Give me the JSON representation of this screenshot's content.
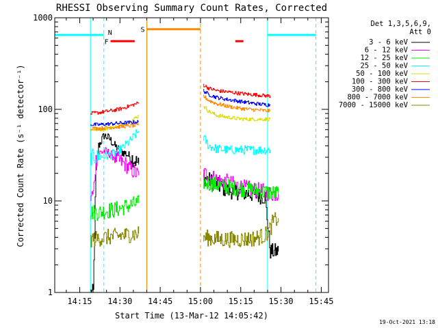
{
  "chart_data": {
    "type": "line",
    "title": "RHESSI Observing Summary Count Rates, Corrected",
    "xlabel": "Start Time (13-Mar-12 14:05:42)",
    "ylabel": "Corrected Count Rate (s⁻¹ detector⁻¹)",
    "yscale": "log",
    "ylim": [
      1,
      1000
    ],
    "xlim_minutes": [
      5.7,
      107.7
    ],
    "x_ticks": [
      {
        "label": "14:15",
        "min": 15
      },
      {
        "label": "14:30",
        "min": 30
      },
      {
        "label": "14:45",
        "min": 45
      },
      {
        "label": "15:00",
        "min": 60
      },
      {
        "label": "15:15",
        "min": 75
      },
      {
        "label": "15:30",
        "min": 90
      },
      {
        "label": "15:45",
        "min": 105
      }
    ],
    "y_ticks": [
      {
        "label": "1",
        "value": 1
      },
      {
        "label": "10",
        "value": 10
      },
      {
        "label": "100",
        "value": 100
      },
      {
        "label": "1000",
        "value": 1000
      }
    ],
    "legend_header": "Det 1,3,5,6,9,",
    "attenuator": "Att 0",
    "series": [
      {
        "name": "3 - 6 keV",
        "color": "#000000",
        "seg1": [
          [
            19,
            1.0
          ],
          [
            20,
            1.0
          ],
          [
            21,
            20
          ],
          [
            22,
            40
          ],
          [
            24,
            52
          ],
          [
            26,
            48
          ],
          [
            28,
            40
          ],
          [
            30,
            35
          ],
          [
            32,
            33
          ],
          [
            34,
            30
          ],
          [
            36,
            27
          ],
          [
            37,
            25
          ]
        ],
        "seg2": [
          [
            61,
            18
          ],
          [
            63,
            17
          ],
          [
            66,
            15
          ],
          [
            70,
            13
          ],
          [
            74,
            12.5
          ],
          [
            78,
            12
          ],
          [
            81,
            11.5
          ],
          [
            84,
            11
          ],
          [
            86,
            2.8
          ],
          [
            89,
            2.8
          ]
        ]
      },
      {
        "name": "6 - 12 keV",
        "color": "#ff00ff",
        "seg1": [
          [
            19,
            11
          ],
          [
            20,
            12
          ],
          [
            21,
            28
          ],
          [
            22,
            33
          ],
          [
            24,
            35
          ],
          [
            26,
            33
          ],
          [
            28,
            30
          ],
          [
            30,
            27
          ],
          [
            32,
            25
          ],
          [
            34,
            22
          ],
          [
            37,
            19
          ]
        ],
        "seg2": [
          [
            61,
            20
          ],
          [
            63,
            19
          ],
          [
            66,
            17
          ],
          [
            70,
            16
          ],
          [
            74,
            14.5
          ],
          [
            78,
            13.5
          ],
          [
            81,
            13
          ],
          [
            84,
            12.5
          ],
          [
            86,
            12
          ],
          [
            89,
            12
          ]
        ]
      },
      {
        "name": "12 - 25 keV",
        "color": "#00ee00",
        "seg1": [
          [
            19,
            7.5
          ],
          [
            22,
            7.5
          ],
          [
            25,
            7.8
          ],
          [
            28,
            8
          ],
          [
            31,
            8.5
          ],
          [
            34,
            9
          ],
          [
            37,
            9.5
          ]
        ],
        "seg2": [
          [
            61,
            16
          ],
          [
            64,
            15.5
          ],
          [
            68,
            14.5
          ],
          [
            72,
            14
          ],
          [
            76,
            13.5
          ],
          [
            80,
            13
          ],
          [
            84,
            12.5
          ],
          [
            89,
            12
          ]
        ]
      },
      {
        "name": "25 - 50 keV",
        "color": "#00ffff",
        "seg1": [
          [
            19,
            30
          ],
          [
            22,
            30
          ],
          [
            25,
            31
          ],
          [
            28,
            33
          ],
          [
            31,
            38
          ],
          [
            34,
            46
          ],
          [
            37,
            58
          ]
        ],
        "seg2": [
          [
            61,
            50
          ],
          [
            63,
            40
          ],
          [
            66,
            37
          ],
          [
            70,
            36
          ],
          [
            74,
            36
          ],
          [
            78,
            36
          ],
          [
            82,
            36
          ],
          [
            85,
            36
          ],
          [
            86,
            36
          ]
        ]
      },
      {
        "name": "50 - 100 keV",
        "color": "#dddd00",
        "seg1": [
          [
            19,
            60
          ],
          [
            22,
            60
          ],
          [
            25,
            62
          ],
          [
            28,
            64
          ],
          [
            31,
            68
          ],
          [
            34,
            75
          ],
          [
            37,
            85
          ]
        ],
        "seg2": [
          [
            61,
            110
          ],
          [
            63,
            95
          ],
          [
            66,
            86
          ],
          [
            70,
            82
          ],
          [
            74,
            79
          ],
          [
            78,
            78
          ],
          [
            82,
            78
          ],
          [
            85,
            78
          ],
          [
            86,
            78
          ]
        ]
      },
      {
        "name": "100 - 300 keV",
        "color": "#ff0000",
        "seg1": [
          [
            19,
            90
          ],
          [
            22,
            92
          ],
          [
            25,
            95
          ],
          [
            28,
            98
          ],
          [
            31,
            103
          ],
          [
            34,
            110
          ],
          [
            37,
            118
          ]
        ],
        "seg2": [
          [
            61,
            185
          ],
          [
            63,
            170
          ],
          [
            66,
            160
          ],
          [
            70,
            155
          ],
          [
            74,
            150
          ],
          [
            78,
            146
          ],
          [
            82,
            143
          ],
          [
            85,
            140
          ],
          [
            86,
            140
          ]
        ]
      },
      {
        "name": "300 - 800 keV",
        "color": "#0000ff",
        "seg1": [
          [
            19,
            68
          ],
          [
            22,
            68
          ],
          [
            25,
            69
          ],
          [
            28,
            70
          ],
          [
            31,
            71
          ],
          [
            34,
            72
          ],
          [
            37,
            73
          ]
        ],
        "seg2": [
          [
            61,
            160
          ],
          [
            63,
            145
          ],
          [
            66,
            135
          ],
          [
            70,
            128
          ],
          [
            74,
            123
          ],
          [
            78,
            118
          ],
          [
            82,
            114
          ],
          [
            85,
            112
          ],
          [
            86,
            112
          ]
        ]
      },
      {
        "name": "800 - 7000 keV",
        "color": "#ff8800",
        "seg1": [
          [
            19,
            62
          ],
          [
            22,
            62
          ],
          [
            25,
            63
          ],
          [
            28,
            64
          ],
          [
            31,
            65
          ],
          [
            34,
            66
          ],
          [
            37,
            67
          ]
        ],
        "seg2": [
          [
            61,
            140
          ],
          [
            63,
            125
          ],
          [
            66,
            115
          ],
          [
            70,
            108
          ],
          [
            74,
            103
          ],
          [
            78,
            100
          ],
          [
            82,
            98
          ],
          [
            85,
            96
          ],
          [
            86,
            96
          ]
        ]
      },
      {
        "name": "7000 - 15000 keV",
        "color": "#888800",
        "seg1": [
          [
            19,
            3.8
          ],
          [
            22,
            3.9
          ],
          [
            25,
            4.0
          ],
          [
            28,
            4.1
          ],
          [
            31,
            4.2
          ],
          [
            34,
            4.3
          ],
          [
            37,
            4.4
          ]
        ],
        "seg2": [
          [
            61,
            4.0
          ],
          [
            64,
            3.9
          ],
          [
            68,
            3.8
          ],
          [
            72,
            3.8
          ],
          [
            76,
            3.8
          ],
          [
            80,
            3.9
          ],
          [
            84,
            4.2
          ],
          [
            86,
            5.0
          ],
          [
            87,
            6.0
          ],
          [
            89,
            6.5
          ]
        ]
      }
    ],
    "time_bars": [
      {
        "label": "",
        "color": "#00ffff",
        "start": 5.7,
        "end": 24,
        "level": 650
      },
      {
        "label": "N",
        "color": "#00ffff",
        "start": 24,
        "end": 24,
        "level": 650
      },
      {
        "label": "F",
        "color": "#ff0000",
        "start": 26.5,
        "end": 35.5,
        "level": 555
      },
      {
        "label": "S",
        "color": "#ff8800",
        "start": 40,
        "end": 60,
        "level": 750
      },
      {
        "label": "",
        "color": "#ff0000",
        "start": 73,
        "end": 76,
        "level": 555
      },
      {
        "label": "",
        "color": "#00ffff",
        "start": 85,
        "end": 103,
        "level": 650
      }
    ],
    "markers": [
      {
        "kind": "solid",
        "color": "#00ffff",
        "min": 19
      },
      {
        "kind": "dashed",
        "color": "#00ffff",
        "min": 24
      },
      {
        "kind": "solid",
        "color": "#ff8800",
        "min": 40
      },
      {
        "kind": "dashed",
        "color": "#ff8800",
        "min": 60
      },
      {
        "kind": "solid",
        "color": "#00ffff",
        "min": 85
      },
      {
        "kind": "dashed",
        "color": "#00ffff",
        "min": 103
      }
    ],
    "timestamp": "19-Oct-2021 13:18"
  }
}
